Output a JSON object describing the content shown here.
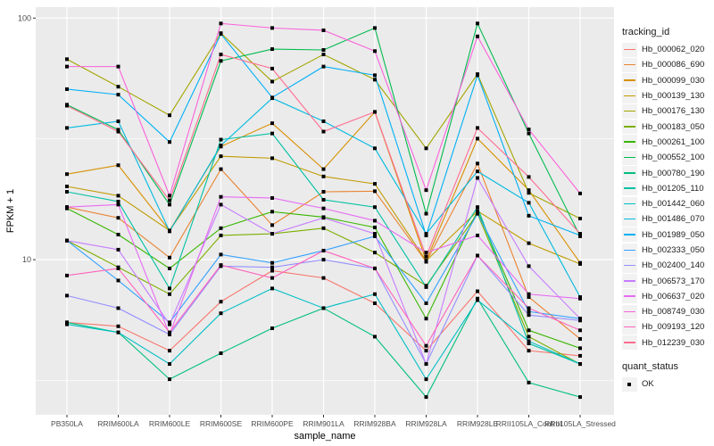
{
  "chart_data": {
    "type": "line",
    "xlabel": "sample_name",
    "ylabel": "FPKM + 1",
    "y_scale": "log10",
    "ylim": [
      2.28,
      111
    ],
    "yticks": [
      10,
      100
    ],
    "ytick_labels": [
      "10",
      "100"
    ],
    "grid": true,
    "legend_position": "right",
    "categories": [
      "PB350LA",
      "RRIM600LA",
      "RRIM600LE",
      "RRIM600SE",
      "RRIM600PE",
      "RRIM901LA",
      "RRIM928BA",
      "RRIM928LA",
      "RRIM928LE",
      "RRII105LA_Control",
      "RRII105LA_Stressed"
    ],
    "legend_title": "tracking_id",
    "series": [
      {
        "name": "Hb_000062_020",
        "color": "#F8766D",
        "values": [
          5.5,
          5.3,
          4.2,
          6.7,
          9.0,
          8.4,
          6.6,
          4.2,
          7.4,
          4.2,
          4.0
        ]
      },
      {
        "name": "Hb_000086_690",
        "color": "#EA8331",
        "values": [
          16.5,
          14.9,
          10.2,
          23.7,
          13.9,
          19.1,
          19.2,
          9.8,
          25.0,
          7.0,
          4.7
        ]
      },
      {
        "name": "Hb_000099_030",
        "color": "#D89000",
        "values": [
          22.6,
          24.6,
          13.2,
          29.4,
          36.7,
          23.7,
          40.9,
          9.9,
          31.7,
          19.4,
          9.7
        ]
      },
      {
        "name": "Hb_000139_130",
        "color": "#C09B00",
        "values": [
          20.1,
          18.4,
          13.2,
          26.8,
          26.3,
          22.1,
          20.6,
          9.9,
          15.9,
          11.7,
          9.6
        ]
      },
      {
        "name": "Hb_000176_130",
        "color": "#A3A500",
        "values": [
          67.6,
          52.0,
          39.6,
          86.6,
          54.6,
          70.7,
          55.6,
          28.9,
          58.6,
          18.9,
          14.8
        ]
      },
      {
        "name": "Hb_000183_050",
        "color": "#7CAE00",
        "values": [
          12.0,
          9.3,
          7.2,
          12.6,
          12.8,
          13.5,
          10.7,
          7.8,
          15.5,
          4.8,
          3.7
        ]
      },
      {
        "name": "Hb_000261_100",
        "color": "#39B600",
        "values": [
          16.3,
          12.7,
          9.2,
          13.5,
          15.8,
          15.0,
          13.6,
          5.7,
          15.9,
          5.1,
          4.3
        ]
      },
      {
        "name": "Hb_000552_100",
        "color": "#00BB4E",
        "values": [
          43.8,
          34.5,
          16.9,
          66.5,
          74.4,
          73.8,
          91.0,
          15.5,
          95.0,
          33.3,
          12.5
        ]
      },
      {
        "name": "Hb_000780_190",
        "color": "#00BF7D",
        "values": [
          5.5,
          5.0,
          3.2,
          4.1,
          5.2,
          6.3,
          4.8,
          2.7,
          6.9,
          3.1,
          2.7
        ]
      },
      {
        "name": "Hb_001205_110",
        "color": "#00C1A3",
        "values": [
          19.1,
          17.4,
          7.6,
          31.4,
          33.3,
          17.7,
          16.5,
          7.7,
          16.5,
          4.5,
          3.7
        ]
      },
      {
        "name": "Hb_001442_060",
        "color": "#00BFC4",
        "values": [
          5.4,
          5.0,
          3.7,
          6.0,
          7.6,
          6.3,
          7.2,
          3.2,
          6.8,
          4.6,
          3.7
        ]
      },
      {
        "name": "Hb_001486_070",
        "color": "#00BAE0",
        "values": [
          35.1,
          37.4,
          13.1,
          29.7,
          46.6,
          37.4,
          28.9,
          12.8,
          23.2,
          17.2,
          7.0
        ]
      },
      {
        "name": "Hb_001989_050",
        "color": "#00B0F6",
        "values": [
          50.8,
          48.2,
          30.7,
          86.0,
          46.9,
          63.0,
          58.0,
          12.6,
          58.0,
          15.2,
          12.6
        ]
      },
      {
        "name": "Hb_002333_050",
        "color": "#35A2FF",
        "values": [
          12.0,
          8.2,
          5.5,
          10.5,
          9.7,
          10.9,
          12.5,
          6.6,
          15.5,
          6.1,
          5.7
        ]
      },
      {
        "name": "Hb_002400_140",
        "color": "#9590FF",
        "values": [
          7.1,
          6.3,
          4.9,
          9.4,
          9.3,
          10.0,
          9.2,
          3.7,
          10.4,
          5.9,
          5.6
        ]
      },
      {
        "name": "Hb_006573_170",
        "color": "#C77CFF",
        "values": [
          12.0,
          11.0,
          5.4,
          16.9,
          12.8,
          14.9,
          12.8,
          3.7,
          21.8,
          9.4,
          5.7
        ]
      },
      {
        "name": "Hb_006637_020",
        "color": "#E76BF3",
        "values": [
          16.5,
          16.9,
          4.9,
          18.2,
          18.0,
          16.3,
          14.5,
          10.7,
          12.6,
          7.2,
          6.9
        ]
      },
      {
        "name": "Hb_008749_030",
        "color": "#FA62DB",
        "values": [
          63.0,
          63.0,
          18.4,
          95.0,
          91.0,
          89.0,
          73.0,
          19.4,
          84.0,
          34.6,
          18.8
        ]
      },
      {
        "name": "Hb_009193_120",
        "color": "#FF62BC",
        "values": [
          8.6,
          9.2,
          5.0,
          9.5,
          8.4,
          10.9,
          9.2,
          4.4,
          10.4,
          6.3,
          5.1
        ]
      },
      {
        "name": "Hb_012239_030",
        "color": "#FF6C91",
        "values": [
          43.4,
          33.9,
          17.6,
          70.7,
          61.8,
          33.9,
          40.9,
          10.3,
          35.1,
          22.0,
          12.8
        ]
      }
    ],
    "shape_legend": {
      "title": "quant_status",
      "items": [
        "OK"
      ]
    },
    "point_color": "#000000",
    "panel_background": "#EBEBEB"
  }
}
